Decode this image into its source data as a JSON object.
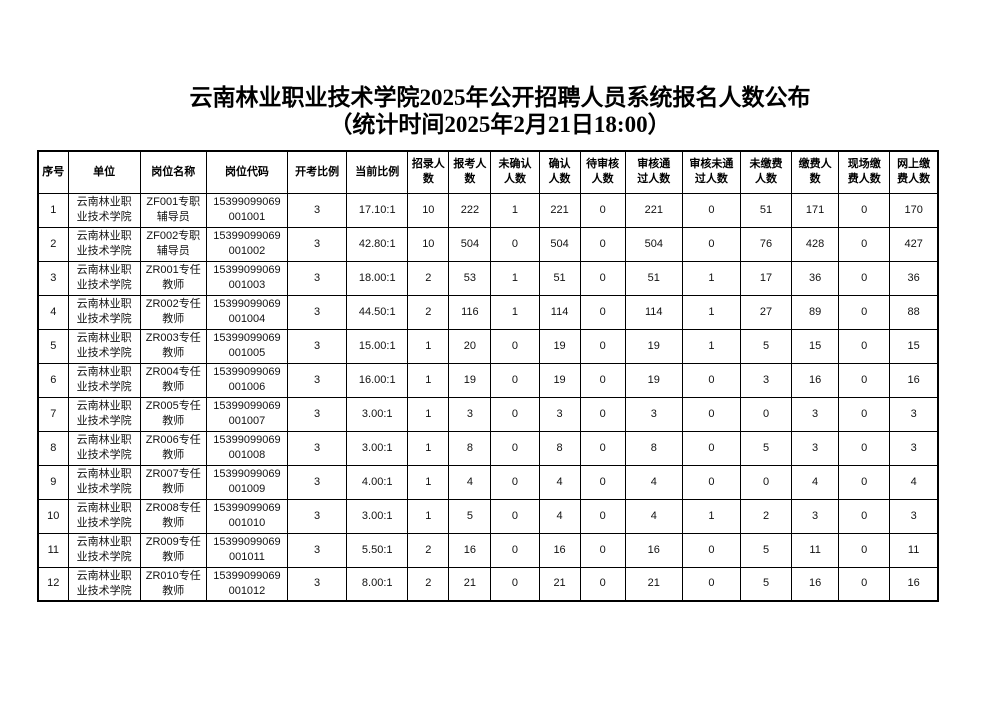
{
  "title": {
    "line1": "云南林业职业技术学院2025年公开招聘人员系统报名人数公布",
    "line2": "（统计时间2025年2月21日18:00）"
  },
  "table": {
    "headers": [
      "序号",
      "单位",
      "岗位名称",
      "岗位代码",
      "开考比例",
      "当前比例",
      "招录人\n数",
      "报考人\n数",
      "未确认\n人数",
      "确认\n人数",
      "待审核\n人数",
      "审核通\n过人数",
      "审核未通\n过人数",
      "未缴费\n人数",
      "缴费人\n数",
      "现场缴\n费人数",
      "网上缴\n费人数"
    ],
    "rows": [
      [
        "1",
        "云南林业职\n业技术学院",
        "ZF001专职\n辅导员",
        "15399099069\n001001",
        "3",
        "17.10:1",
        "10",
        "222",
        "1",
        "221",
        "0",
        "221",
        "0",
        "51",
        "171",
        "0",
        "170"
      ],
      [
        "2",
        "云南林业职\n业技术学院",
        "ZF002专职\n辅导员",
        "15399099069\n001002",
        "3",
        "42.80:1",
        "10",
        "504",
        "0",
        "504",
        "0",
        "504",
        "0",
        "76",
        "428",
        "0",
        "427"
      ],
      [
        "3",
        "云南林业职\n业技术学院",
        "ZR001专任\n教师",
        "15399099069\n001003",
        "3",
        "18.00:1",
        "2",
        "53",
        "1",
        "51",
        "0",
        "51",
        "1",
        "17",
        "36",
        "0",
        "36"
      ],
      [
        "4",
        "云南林业职\n业技术学院",
        "ZR002专任\n教师",
        "15399099069\n001004",
        "3",
        "44.50:1",
        "2",
        "116",
        "1",
        "114",
        "0",
        "114",
        "1",
        "27",
        "89",
        "0",
        "88"
      ],
      [
        "5",
        "云南林业职\n业技术学院",
        "ZR003专任\n教师",
        "15399099069\n001005",
        "3",
        "15.00:1",
        "1",
        "20",
        "0",
        "19",
        "0",
        "19",
        "1",
        "5",
        "15",
        "0",
        "15"
      ],
      [
        "6",
        "云南林业职\n业技术学院",
        "ZR004专任\n教师",
        "15399099069\n001006",
        "3",
        "16.00:1",
        "1",
        "19",
        "0",
        "19",
        "0",
        "19",
        "0",
        "3",
        "16",
        "0",
        "16"
      ],
      [
        "7",
        "云南林业职\n业技术学院",
        "ZR005专任\n教师",
        "15399099069\n001007",
        "3",
        "3.00:1",
        "1",
        "3",
        "0",
        "3",
        "0",
        "3",
        "0",
        "0",
        "3",
        "0",
        "3"
      ],
      [
        "8",
        "云南林业职\n业技术学院",
        "ZR006专任\n教师",
        "15399099069\n001008",
        "3",
        "3.00:1",
        "1",
        "8",
        "0",
        "8",
        "0",
        "8",
        "0",
        "5",
        "3",
        "0",
        "3"
      ],
      [
        "9",
        "云南林业职\n业技术学院",
        "ZR007专任\n教师",
        "15399099069\n001009",
        "3",
        "4.00:1",
        "1",
        "4",
        "0",
        "4",
        "0",
        "4",
        "0",
        "0",
        "4",
        "0",
        "4"
      ],
      [
        "10",
        "云南林业职\n业技术学院",
        "ZR008专任\n教师",
        "15399099069\n001010",
        "3",
        "3.00:1",
        "1",
        "5",
        "0",
        "4",
        "0",
        "4",
        "1",
        "2",
        "3",
        "0",
        "3"
      ],
      [
        "11",
        "云南林业职\n业技术学院",
        "ZR009专任\n教师",
        "15399099069\n001011",
        "3",
        "5.50:1",
        "2",
        "16",
        "0",
        "16",
        "0",
        "16",
        "0",
        "5",
        "11",
        "0",
        "11"
      ],
      [
        "12",
        "云南林业职\n业技术学院",
        "ZR010专任\n教师",
        "15399099069\n001012",
        "3",
        "8.00:1",
        "2",
        "21",
        "0",
        "21",
        "0",
        "21",
        "0",
        "5",
        "16",
        "0",
        "16"
      ]
    ]
  }
}
